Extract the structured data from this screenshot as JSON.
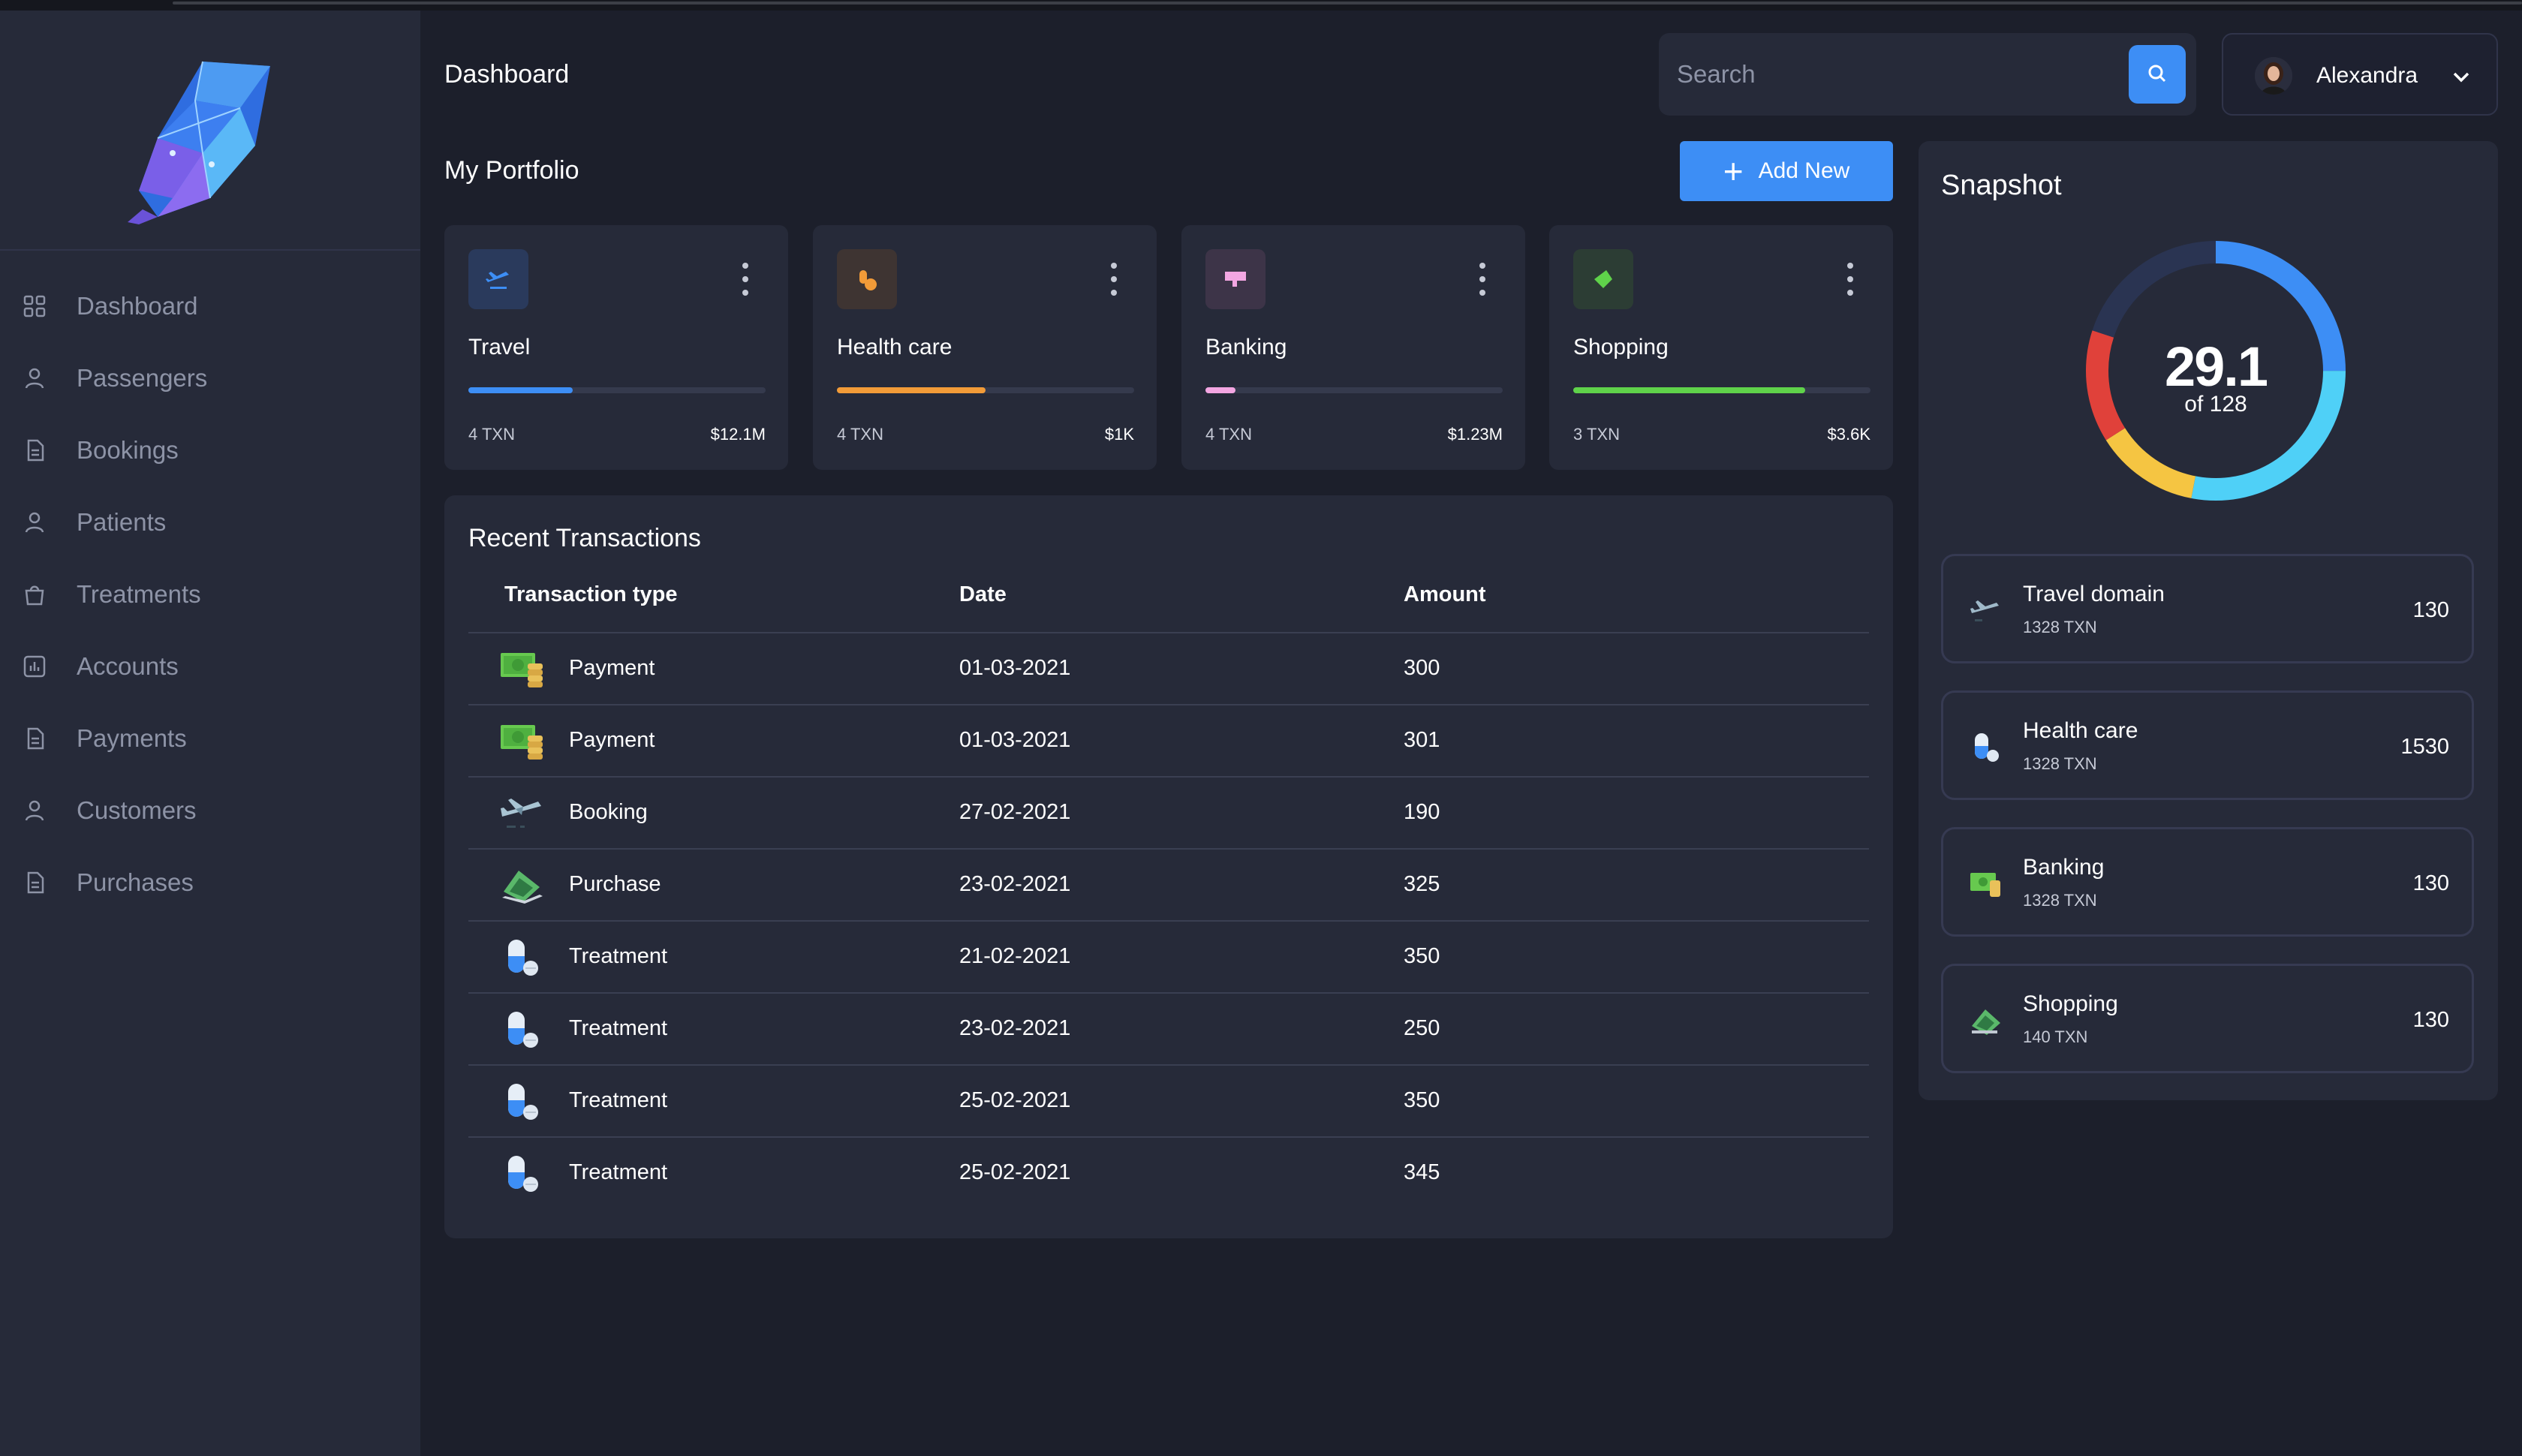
{
  "app": {
    "page_title": "Dashboard"
  },
  "sidebar": {
    "logo": "crystal-leaf-logo",
    "items": [
      {
        "label": "Dashboard",
        "icon": "grid-icon"
      },
      {
        "label": "Passengers",
        "icon": "user-icon"
      },
      {
        "label": "Bookings",
        "icon": "document-icon"
      },
      {
        "label": "Patients",
        "icon": "user-icon"
      },
      {
        "label": "Treatments",
        "icon": "bag-icon"
      },
      {
        "label": "Accounts",
        "icon": "chart-icon"
      },
      {
        "label": "Payments",
        "icon": "document-icon"
      },
      {
        "label": "Customers",
        "icon": "user-icon"
      },
      {
        "label": "Purchases",
        "icon": "document-icon"
      }
    ]
  },
  "header": {
    "search": {
      "placeholder": "Search",
      "value": ""
    },
    "user": {
      "name": "Alexandra"
    }
  },
  "portfolio": {
    "title": "My Portfolio",
    "add_label": "Add New",
    "cards": [
      {
        "title": "Travel",
        "txn": "4 TXN",
        "amount": "$12.1M",
        "progress": 0.35,
        "color": "#3d8ef5",
        "icon_bg": "#2a3a5c",
        "icon": "airplane-icon"
      },
      {
        "title": "Health care",
        "txn": "4 TXN",
        "amount": "$1K",
        "progress": 0.5,
        "color": "#f29b38",
        "icon_bg": "#3e3432",
        "icon": "pills-icon"
      },
      {
        "title": "Banking",
        "txn": "4 TXN",
        "amount": "$1.23M",
        "progress": 0.1,
        "color": "#f3a6e2",
        "icon_bg": "#3d3448",
        "icon": "card-icon"
      },
      {
        "title": "Shopping",
        "txn": "3 TXN",
        "amount": "$3.6K",
        "progress": 0.78,
        "color": "#5fd24a",
        "icon_bg": "#2c3d34",
        "icon": "tag-icon"
      }
    ]
  },
  "transactions": {
    "title": "Recent Transactions",
    "columns": [
      "Transaction type",
      "Date",
      "Amount"
    ],
    "rows": [
      {
        "type": "Payment",
        "date": "01-03-2021",
        "amount": "300",
        "icon": "cash-coins-icon"
      },
      {
        "type": "Payment",
        "date": "01-03-2021",
        "amount": "301",
        "icon": "cash-coins-icon"
      },
      {
        "type": "Booking",
        "date": "27-02-2021",
        "amount": "190",
        "icon": "airplane-icon"
      },
      {
        "type": "Purchase",
        "date": "23-02-2021",
        "amount": "325",
        "icon": "laptop-card-icon"
      },
      {
        "type": "Treatment",
        "date": "21-02-2021",
        "amount": "350",
        "icon": "capsule-icon"
      },
      {
        "type": "Treatment",
        "date": "23-02-2021",
        "amount": "250",
        "icon": "capsule-icon"
      },
      {
        "type": "Treatment",
        "date": "25-02-2021",
        "amount": "350",
        "icon": "capsule-icon"
      },
      {
        "type": "Treatment",
        "date": "25-02-2021",
        "amount": "345",
        "icon": "capsule-icon"
      }
    ]
  },
  "snapshot": {
    "title": "Snapshot",
    "value": "29.1",
    "sub": "of 128",
    "segments": [
      {
        "color": "#3d8ef5",
        "fraction": 0.25
      },
      {
        "color": "#4fd0f7",
        "fraction": 0.28
      },
      {
        "color": "#f5c542",
        "fraction": 0.13
      },
      {
        "color": "#e0413a",
        "fraction": 0.14
      },
      {
        "color": "#2a3452",
        "fraction": 0.2
      }
    ],
    "items": [
      {
        "name": "Travel domain",
        "txn": "1328 TXN",
        "value": "130",
        "icon": "airplane-icon"
      },
      {
        "name": "Health care",
        "txn": "1328 TXN",
        "value": "1530",
        "icon": "capsule-icon"
      },
      {
        "name": "Banking",
        "txn": "1328 TXN",
        "value": "130",
        "icon": "cash-coins-icon"
      },
      {
        "name": "Shopping",
        "txn": "140 TXN",
        "value": "130",
        "icon": "laptop-card-icon"
      }
    ]
  }
}
